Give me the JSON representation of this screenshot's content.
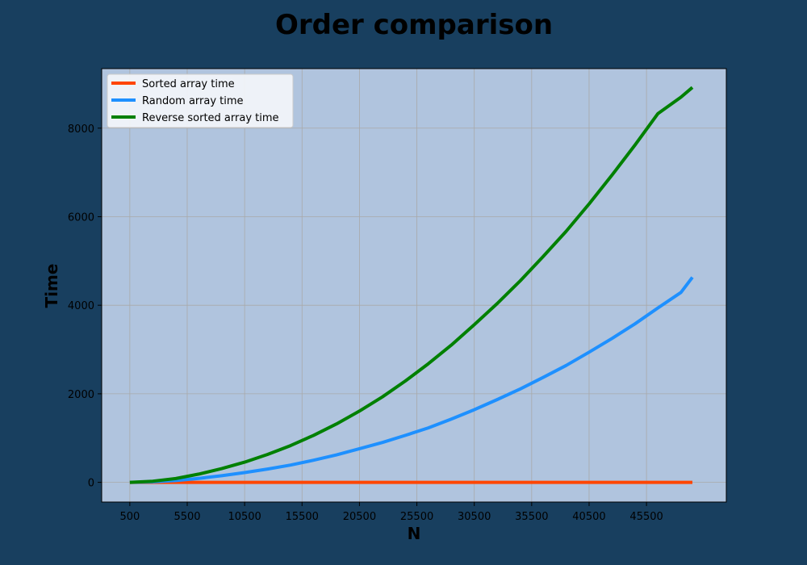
{
  "chart_data": {
    "type": "line",
    "title": "Order comparison",
    "xlabel": "N",
    "ylabel": "Time",
    "xlim": [
      -1950,
      52450
    ],
    "ylim": [
      -445,
      9345
    ],
    "xticks": [
      500,
      5500,
      10500,
      15500,
      20500,
      25500,
      30500,
      35500,
      40500,
      45500
    ],
    "yticks": [
      0,
      2000,
      4000,
      6000,
      8000
    ],
    "grid": true,
    "legend_position": "top-left",
    "colors": {
      "figure_background": "#183f5f",
      "plot_background": "#b0c4de",
      "grid": "#a9a9a9"
    },
    "x": [
      500,
      2500,
      4500,
      6500,
      8500,
      10500,
      12500,
      14500,
      16500,
      18500,
      20500,
      22500,
      24500,
      26500,
      28500,
      30500,
      32500,
      34500,
      36500,
      38500,
      40500,
      42500,
      44500,
      46500,
      48500,
      49500
    ],
    "series": [
      {
        "name": "Sorted array time",
        "color": "#ff4500",
        "values": [
          0,
          0,
          0,
          0,
          0,
          0,
          0,
          0,
          0,
          0,
          0,
          0,
          0,
          0,
          0,
          0,
          0,
          0,
          0,
          0,
          0,
          0,
          0,
          0,
          0,
          0
        ]
      },
      {
        "name": "Random array time",
        "color": "#1e90ff",
        "values": [
          0,
          10,
          40,
          90,
          150,
          220,
          300,
          390,
          500,
          620,
          760,
          900,
          1060,
          1230,
          1430,
          1640,
          1870,
          2110,
          2370,
          2640,
          2940,
          3250,
          3580,
          3940,
          4290,
          4630
        ]
      },
      {
        "name": "Reverse sorted array time",
        "color": "#008000",
        "values": [
          0,
          25,
          85,
          185,
          310,
          455,
          630,
          830,
          1060,
          1320,
          1610,
          1930,
          2290,
          2680,
          3100,
          3560,
          4040,
          4550,
          5100,
          5670,
          6290,
          6940,
          7620,
          8330,
          8700,
          8920
        ]
      }
    ]
  }
}
